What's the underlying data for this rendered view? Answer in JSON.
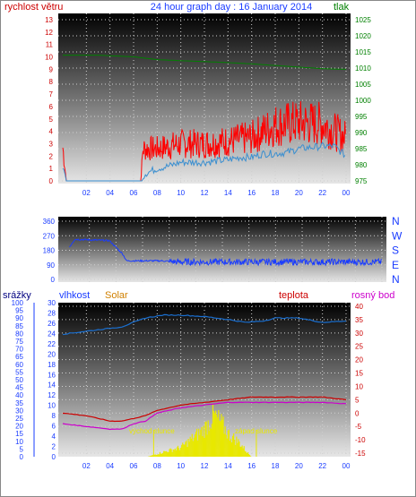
{
  "header": {
    "wind_label": "rychlost větru",
    "title": "24 hour graph day : 16 January 2014",
    "pressure_label": "tlak"
  },
  "colors": {
    "wind": "#ff0000",
    "wind_avg": "#3a8fd0",
    "pressure": "#008000",
    "direction": "#1a3cff",
    "axis_blue": "#1a3cff",
    "axis_red": "#cc0000",
    "axis_green": "#008000",
    "humidity": "#1a6fd0",
    "solar": "#e8e800",
    "temperature": "#cc0000",
    "dew_point": "#cc00cc",
    "rain_label": "#000080",
    "solar_label": "#d08000",
    "annotation": "#e8e800"
  },
  "time_ticks": [
    "02",
    "04",
    "06",
    "08",
    "10",
    "12",
    "14",
    "16",
    "18",
    "20",
    "22",
    "00"
  ],
  "compass": [
    "N",
    "W",
    "S",
    "E",
    "N"
  ],
  "bottom_labels": {
    "rain": "srážky",
    "humidity": "vlhkost",
    "solar": "Solar",
    "temperature": "teplota",
    "dew_point": "rosný bod"
  },
  "annotations": {
    "sunrise": "východ slunce",
    "sunset": "západ slunce"
  },
  "chart_data": [
    {
      "type": "line",
      "name": "wind",
      "x_range": [
        0,
        24
      ],
      "ylim": [
        0,
        13
      ],
      "yticks": [
        0,
        1,
        2,
        3,
        4,
        5,
        6,
        7,
        8,
        9,
        10,
        11,
        12,
        13
      ],
      "y2lim": [
        975,
        1025
      ],
      "y2ticks": [
        975,
        980,
        985,
        990,
        995,
        1000,
        1005,
        1010,
        1015,
        1020,
        1025
      ],
      "gust_profile": [
        [
          0,
          2.7
        ],
        [
          0.3,
          0
        ],
        [
          6.6,
          0
        ],
        [
          6.8,
          2.6
        ],
        [
          8,
          2.6
        ],
        [
          10,
          3
        ],
        [
          12,
          3
        ],
        [
          14,
          3.2
        ],
        [
          16,
          3.5
        ],
        [
          18,
          4.5
        ],
        [
          20,
          4.7
        ],
        [
          22,
          4.6
        ],
        [
          23,
          4
        ],
        [
          24,
          3.5
        ]
      ],
      "average_profile": [
        [
          0,
          1.2
        ],
        [
          0.3,
          0
        ],
        [
          6.6,
          0
        ],
        [
          7.0,
          0.6
        ],
        [
          8,
          1.0
        ],
        [
          9,
          1.2
        ],
        [
          10,
          1.5
        ],
        [
          11,
          1.5
        ],
        [
          12,
          1.5
        ],
        [
          13,
          1.6
        ],
        [
          14,
          1.7
        ],
        [
          15,
          1.9
        ],
        [
          16,
          1.9
        ],
        [
          17,
          2.2
        ],
        [
          18,
          2.2
        ],
        [
          19,
          2.3
        ],
        [
          20,
          2.6
        ],
        [
          21,
          2.7
        ],
        [
          22,
          2.8
        ],
        [
          23,
          2.8
        ],
        [
          24,
          2.0
        ]
      ],
      "pressure_profile": [
        [
          0,
          1014
        ],
        [
          3,
          1014
        ],
        [
          6,
          1013.5
        ],
        [
          8,
          1012.6
        ],
        [
          10,
          1012.3
        ],
        [
          12,
          1012
        ],
        [
          14,
          1011.7
        ],
        [
          16,
          1011.3
        ],
        [
          18,
          1010.8
        ],
        [
          20,
          1010.3
        ],
        [
          22,
          1009.8
        ],
        [
          24,
          1009.6
        ]
      ]
    },
    {
      "type": "line",
      "name": "direction",
      "x_range": [
        0,
        24
      ],
      "ylim": [
        0,
        360
      ],
      "yticks": [
        0,
        90,
        180,
        270,
        360
      ],
      "profile": [
        [
          0.5,
          200
        ],
        [
          0.9,
          248
        ],
        [
          3.5,
          240
        ],
        [
          4.5,
          158
        ],
        [
          4.8,
          115
        ],
        [
          7.5,
          115
        ],
        [
          8.5,
          108
        ],
        [
          24,
          108
        ]
      ]
    },
    {
      "type": "line",
      "name": "humidity-temperature",
      "x_range": [
        0,
        24
      ],
      "rain_ylim": [
        0,
        100
      ],
      "rain_yticks": [
        0,
        5,
        10,
        15,
        20,
        25,
        30,
        35,
        40,
        45,
        50,
        55,
        60,
        65,
        70,
        75,
        80,
        85,
        90,
        95,
        100
      ],
      "humidity_ylim": [
        0,
        30
      ],
      "humidity_yticks": [
        0,
        2,
        4,
        6,
        8,
        10,
        12,
        14,
        16,
        18,
        20,
        22,
        24,
        26,
        28,
        30
      ],
      "temp_ylim": [
        -15,
        40
      ],
      "temp_yticks": [
        -15,
        -10,
        -5,
        0,
        5,
        10,
        15,
        20,
        25,
        30,
        35,
        40
      ],
      "humidity_profile": [
        [
          0,
          81
        ],
        [
          3,
          84
        ],
        [
          5,
          86
        ],
        [
          7,
          92
        ],
        [
          8.5,
          94
        ],
        [
          10,
          94
        ],
        [
          12,
          93
        ],
        [
          14,
          91
        ],
        [
          15.5,
          89
        ],
        [
          17,
          90
        ],
        [
          18,
          92
        ],
        [
          20,
          92
        ],
        [
          22,
          89
        ],
        [
          24,
          90
        ]
      ],
      "temperature_profile": [
        [
          0,
          0
        ],
        [
          2,
          -1
        ],
        [
          4,
          -3
        ],
        [
          5,
          -3
        ],
        [
          6,
          -2
        ],
        [
          7,
          -1
        ],
        [
          8,
          1
        ],
        [
          10,
          3
        ],
        [
          12,
          4
        ],
        [
          14,
          5
        ],
        [
          16,
          6
        ],
        [
          18,
          6
        ],
        [
          20,
          6
        ],
        [
          22,
          6
        ],
        [
          24,
          5
        ]
      ],
      "dew_point_profile": [
        [
          0,
          -4
        ],
        [
          2,
          -5
        ],
        [
          4,
          -6
        ],
        [
          5,
          -6
        ],
        [
          6,
          -4
        ],
        [
          7,
          -3
        ],
        [
          8,
          0
        ],
        [
          10,
          2
        ],
        [
          12,
          3
        ],
        [
          14,
          4
        ],
        [
          16,
          4
        ],
        [
          18,
          4
        ],
        [
          20,
          4
        ],
        [
          22,
          4
        ],
        [
          24,
          3.5
        ]
      ],
      "solar_profile": [
        [
          7.2,
          0
        ],
        [
          8.5,
          1
        ],
        [
          10,
          2
        ],
        [
          11,
          4
        ],
        [
          12,
          6
        ],
        [
          12.8,
          9
        ],
        [
          13.5,
          7
        ],
        [
          14,
          5
        ],
        [
          15,
          3
        ],
        [
          15.6,
          1
        ],
        [
          16.0,
          0
        ]
      ],
      "sunrise_hour": 7.7,
      "sunset_hour": 16.4
    }
  ]
}
